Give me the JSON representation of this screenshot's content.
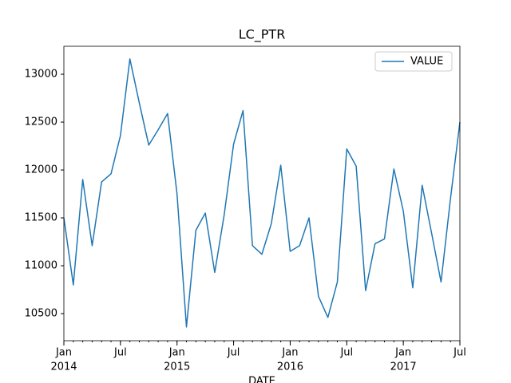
{
  "chart_data": {
    "type": "line",
    "title": "LC_PTR",
    "xlabel": "DATE",
    "x": [
      "2014-01",
      "2014-02",
      "2014-03",
      "2014-04",
      "2014-05",
      "2014-06",
      "2014-07",
      "2014-08",
      "2014-09",
      "2014-10",
      "2014-11",
      "2014-12",
      "2015-01",
      "2015-02",
      "2015-03",
      "2015-04",
      "2015-05",
      "2015-06",
      "2015-07",
      "2015-08",
      "2015-09",
      "2015-10",
      "2015-11",
      "2015-12",
      "2016-01",
      "2016-02",
      "2016-03",
      "2016-04",
      "2016-05",
      "2016-06",
      "2016-07",
      "2016-08",
      "2016-09",
      "2016-10",
      "2016-11",
      "2016-12",
      "2017-01",
      "2017-02",
      "2017-03",
      "2017-04",
      "2017-05",
      "2017-06",
      "2017-07"
    ],
    "series": [
      {
        "name": "VALUE",
        "color": "#1f77b4",
        "values": [
          11500,
          10800,
          11900,
          11210,
          11875,
          11960,
          12360,
          13160,
          12700,
          12260,
          12420,
          12590,
          11750,
          10360,
          11370,
          11550,
          10930,
          11530,
          12270,
          12620,
          11210,
          11120,
          11440,
          12050,
          11150,
          11210,
          11500,
          10680,
          10460,
          10830,
          12220,
          12040,
          10740,
          11230,
          11280,
          12010,
          11570,
          10770,
          11840,
          11340,
          10830,
          11700,
          12500
        ]
      }
    ],
    "ylim": [
      10217,
      13292
    ],
    "yticks": [
      10500,
      11000,
      11500,
      12000,
      12500,
      13000
    ],
    "xlim": [
      "2014-01",
      "2017-07"
    ],
    "xticks": [
      {
        "value": "2014-01",
        "label": "Jan",
        "sublabel": "2014"
      },
      {
        "value": "2014-07",
        "label": "Jul"
      },
      {
        "value": "2015-01",
        "label": "Jan",
        "sublabel": "2015"
      },
      {
        "value": "2015-07",
        "label": "Jul"
      },
      {
        "value": "2016-01",
        "label": "Jan",
        "sublabel": "2016"
      },
      {
        "value": "2016-07",
        "label": "Jul"
      },
      {
        "value": "2017-01",
        "label": "Jan",
        "sublabel": "2017"
      },
      {
        "value": "2017-07",
        "label": "Jul"
      }
    ],
    "legend": "upper right",
    "grid": false
  }
}
